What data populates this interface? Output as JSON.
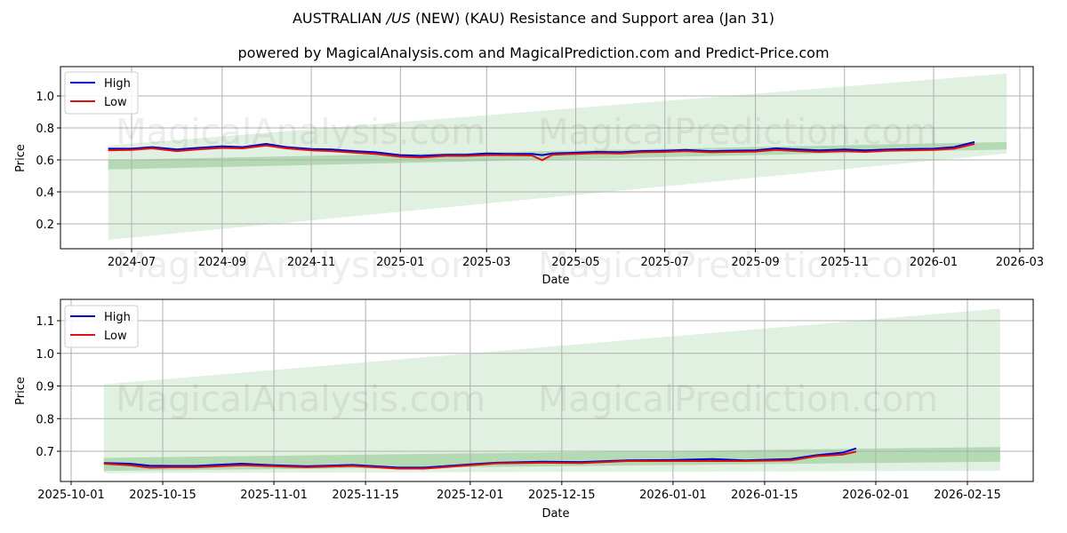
{
  "title": "AUSTRALIAN /US (NEW) (KAU) Resistance and Support area (Jan 31)",
  "title_parts": {
    "pre": "AUSTRALIAN ",
    "italic": "/US",
    "post": " (NEW) (KAU) Resistance and Support area (Jan 31)"
  },
  "subtitle": "powered by MagicalAnalysis.com and MagicalPrediction.com and Predict-Price.com",
  "watermarks": [
    "MagicalAnalysis.com",
    "MagicalPrediction.com"
  ],
  "colors": {
    "high": "#0000cc",
    "low": "#dd1111",
    "band_light": "#c9e6c9",
    "band_dark": "#9fd09f",
    "grid": "#b0b0b0"
  },
  "chart_data": [
    {
      "type": "line",
      "title": "AUSTRALIAN /US (NEW) (KAU) Resistance and Support area (Jan 31)",
      "xlabel": "Date",
      "ylabel": "Price",
      "ylim": [
        0.04,
        1.18
      ],
      "grid": true,
      "legend": {
        "position": "upper left",
        "entries": [
          "High",
          "Low"
        ]
      },
      "x_ticks": [
        "2024-07",
        "2024-09",
        "2024-11",
        "2025-01",
        "2025-03",
        "2025-05",
        "2025-07",
        "2025-09",
        "2025-11",
        "2026-01",
        "2026-03"
      ],
      "y_ticks": [
        "0.2",
        "0.4",
        "0.6",
        "0.8",
        "1.0"
      ],
      "x": [
        "2024-06-15",
        "2024-07-01",
        "2024-07-15",
        "2024-08-01",
        "2024-08-15",
        "2024-09-01",
        "2024-09-15",
        "2024-10-01",
        "2024-10-15",
        "2024-11-01",
        "2024-11-15",
        "2024-12-01",
        "2024-12-15",
        "2025-01-01",
        "2025-01-15",
        "2025-02-01",
        "2025-02-15",
        "2025-03-01",
        "2025-03-15",
        "2025-04-01",
        "2025-04-08",
        "2025-04-15",
        "2025-05-01",
        "2025-05-15",
        "2025-06-01",
        "2025-06-15",
        "2025-07-01",
        "2025-07-15",
        "2025-08-01",
        "2025-08-15",
        "2025-09-01",
        "2025-09-15",
        "2025-10-01",
        "2025-10-15",
        "2025-11-01",
        "2025-11-15",
        "2025-12-01",
        "2025-12-15",
        "2026-01-01",
        "2026-01-15",
        "2026-01-29"
      ],
      "series": [
        {
          "name": "High",
          "values": [
            0.67,
            0.67,
            0.68,
            0.665,
            0.675,
            0.685,
            0.68,
            0.7,
            0.68,
            0.668,
            0.665,
            0.655,
            0.648,
            0.63,
            0.625,
            0.632,
            0.632,
            0.64,
            0.638,
            0.638,
            0.63,
            0.64,
            0.645,
            0.65,
            0.648,
            0.655,
            0.658,
            0.662,
            0.655,
            0.658,
            0.66,
            0.672,
            0.665,
            0.66,
            0.665,
            0.66,
            0.665,
            0.668,
            0.67,
            0.68,
            0.712
          ]
        },
        {
          "name": "Low",
          "values": [
            0.66,
            0.662,
            0.672,
            0.655,
            0.665,
            0.675,
            0.672,
            0.69,
            0.672,
            0.66,
            0.655,
            0.645,
            0.638,
            0.62,
            0.615,
            0.625,
            0.625,
            0.63,
            0.63,
            0.628,
            0.598,
            0.632,
            0.638,
            0.642,
            0.64,
            0.648,
            0.65,
            0.655,
            0.648,
            0.65,
            0.652,
            0.662,
            0.655,
            0.65,
            0.655,
            0.65,
            0.658,
            0.66,
            0.663,
            0.67,
            0.7
          ]
        }
      ],
      "bands": [
        {
          "name": "wide-support-resistance",
          "x_start": "2024-06-15",
          "x_end": "2026-02-20",
          "upper_start": 0.69,
          "upper_end": 1.14,
          "lower_start": 0.1,
          "lower_end": 0.64
        },
        {
          "name": "narrow-support-resistance",
          "x_start": "2024-06-15",
          "x_end": "2026-02-20",
          "upper_start": 0.6,
          "upper_end": 0.712,
          "lower_start": 0.54,
          "lower_end": 0.665
        }
      ]
    },
    {
      "type": "line",
      "xlabel": "Date",
      "ylabel": "Price",
      "ylim": [
        0.61,
        1.16
      ],
      "grid": true,
      "legend": {
        "position": "upper left",
        "entries": [
          "High",
          "Low"
        ]
      },
      "x_ticks": [
        "2025-10-01",
        "2025-10-15",
        "2025-11-01",
        "2025-11-15",
        "2025-12-01",
        "2025-12-15",
        "2026-01-01",
        "2026-01-15",
        "2026-02-01",
        "2026-02-15"
      ],
      "y_ticks": [
        "0.7",
        "0.8",
        "0.9",
        "1.0",
        "1.1"
      ],
      "x": [
        "2025-10-06",
        "2025-10-10",
        "2025-10-13",
        "2025-10-16",
        "2025-10-20",
        "2025-10-27",
        "2025-11-01",
        "2025-11-06",
        "2025-11-13",
        "2025-11-20",
        "2025-11-24",
        "2025-12-01",
        "2025-12-05",
        "2025-12-12",
        "2025-12-18",
        "2025-12-25",
        "2026-01-01",
        "2026-01-07",
        "2026-01-12",
        "2026-01-19",
        "2026-01-23",
        "2026-01-27",
        "2026-01-29"
      ],
      "series": [
        {
          "name": "High",
          "values": [
            0.664,
            0.662,
            0.656,
            0.655,
            0.655,
            0.662,
            0.657,
            0.654,
            0.658,
            0.65,
            0.65,
            0.66,
            0.665,
            0.668,
            0.667,
            0.672,
            0.673,
            0.676,
            0.672,
            0.676,
            0.688,
            0.696,
            0.709
          ]
        },
        {
          "name": "Low",
          "values": [
            0.662,
            0.657,
            0.65,
            0.651,
            0.651,
            0.657,
            0.654,
            0.651,
            0.655,
            0.647,
            0.647,
            0.657,
            0.663,
            0.665,
            0.664,
            0.67,
            0.67,
            0.67,
            0.67,
            0.672,
            0.685,
            0.69,
            0.699
          ]
        }
      ],
      "bands": [
        {
          "name": "wide-support-resistance",
          "x_start": "2025-10-06",
          "x_end": "2026-02-20",
          "upper_start": 0.905,
          "upper_end": 1.137,
          "lower_start": 0.633,
          "lower_end": 0.64
        },
        {
          "name": "narrow-support-resistance",
          "x_start": "2025-10-06",
          "x_end": "2026-02-20",
          "upper_start": 0.68,
          "upper_end": 0.713,
          "lower_start": 0.64,
          "lower_end": 0.668
        }
      ]
    }
  ],
  "axes": {
    "top": {
      "xlabel": "Date",
      "ylabel": "Price",
      "legend_high": "High",
      "legend_low": "Low"
    },
    "bottom": {
      "xlabel": "Date",
      "ylabel": "Price",
      "legend_high": "High",
      "legend_low": "Low"
    }
  }
}
